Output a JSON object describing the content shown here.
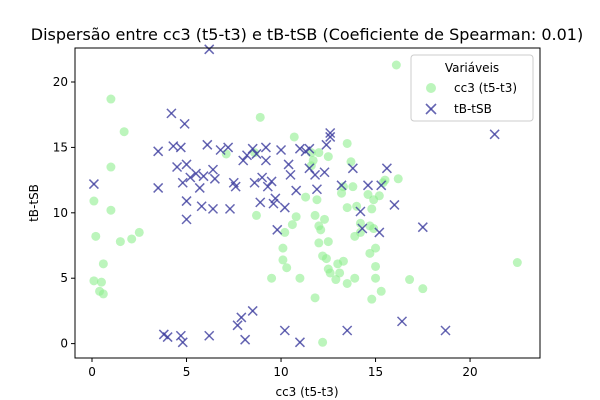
{
  "chart_data": {
    "type": "scatter",
    "title": "Dispersão entre cc3 (t5-t3) e tB-tSB (Coeficiente de Spearman: 0.01)",
    "xlabel": "cc3 (t5-t3)",
    "ylabel": "tB-tSB",
    "xlim": [
      -0.9,
      23.7
    ],
    "ylim": [
      -1.1,
      22.6
    ],
    "xticks": [
      0,
      5,
      10,
      15,
      20
    ],
    "yticks": [
      0,
      5,
      10,
      15,
      20
    ],
    "grid": false,
    "legend": {
      "title": "Variáveis",
      "placement": "top-right"
    },
    "series": [
      {
        "name": "cc3 (t5-t3)",
        "marker": "circle",
        "color": "#90EE90",
        "points": [
          [
            0.1,
            4.8
          ],
          [
            0.4,
            4.0
          ],
          [
            0.6,
            3.8
          ],
          [
            0.5,
            4.7
          ],
          [
            0.6,
            6.1
          ],
          [
            0.2,
            8.2
          ],
          [
            0.1,
            10.9
          ],
          [
            1.0,
            10.2
          ],
          [
            1.0,
            13.5
          ],
          [
            1.0,
            18.7
          ],
          [
            1.7,
            16.2
          ],
          [
            1.5,
            7.8
          ],
          [
            2.1,
            8.0
          ],
          [
            2.5,
            8.5
          ],
          [
            7.1,
            14.5
          ],
          [
            8.6,
            14.6
          ],
          [
            8.7,
            9.8
          ],
          [
            8.9,
            17.3
          ],
          [
            10.2,
            8.5
          ],
          [
            10.1,
            7.3
          ],
          [
            10.1,
            6.4
          ],
          [
            10.3,
            5.8
          ],
          [
            9.5,
            5.0
          ],
          [
            10.6,
            9.1
          ],
          [
            10.8,
            9.7
          ],
          [
            11.0,
            5.0
          ],
          [
            10.7,
            15.8
          ],
          [
            11.3,
            11.2
          ],
          [
            11.6,
            13.6
          ],
          [
            11.6,
            14.6
          ],
          [
            11.9,
            11.0
          ],
          [
            12.0,
            9.0
          ],
          [
            11.8,
            9.8
          ],
          [
            12.0,
            7.7
          ],
          [
            12.1,
            8.7
          ],
          [
            12.3,
            9.5
          ],
          [
            12.5,
            7.8
          ],
          [
            12.2,
            6.7
          ],
          [
            12.4,
            6.5
          ],
          [
            12.5,
            5.7
          ],
          [
            11.8,
            3.5
          ],
          [
            12.2,
            0.1
          ],
          [
            12.6,
            5.4
          ],
          [
            12.9,
            4.9
          ],
          [
            13.0,
            6.1
          ],
          [
            13.1,
            5.4
          ],
          [
            13.3,
            6.3
          ],
          [
            13.5,
            4.6
          ],
          [
            13.9,
            5.0
          ],
          [
            13.5,
            10.4
          ],
          [
            13.2,
            11.5
          ],
          [
            13.3,
            12.0
          ],
          [
            12.5,
            14.3
          ],
          [
            12.0,
            14.6
          ],
          [
            11.7,
            14.0
          ],
          [
            13.5,
            15.3
          ],
          [
            13.7,
            13.9
          ],
          [
            13.8,
            12.0
          ],
          [
            14.0,
            10.5
          ],
          [
            14.2,
            9.2
          ],
          [
            13.9,
            8.2
          ],
          [
            14.2,
            8.5
          ],
          [
            14.6,
            11.4
          ],
          [
            14.7,
            9.0
          ],
          [
            14.9,
            8.8
          ],
          [
            14.8,
            10.3
          ],
          [
            14.9,
            11.0
          ],
          [
            15.0,
            7.3
          ],
          [
            14.7,
            6.9
          ],
          [
            15.0,
            5.9
          ],
          [
            15.0,
            5.0
          ],
          [
            14.8,
            3.4
          ],
          [
            15.3,
            4.0
          ],
          [
            15.2,
            11.3
          ],
          [
            15.4,
            12.3
          ],
          [
            15.5,
            12.5
          ],
          [
            16.1,
            21.3
          ],
          [
            16.2,
            12.6
          ],
          [
            16.8,
            4.9
          ],
          [
            17.5,
            4.2
          ],
          [
            22.5,
            6.2
          ]
        ]
      },
      {
        "name": "tB-tSB",
        "marker": "x",
        "color": "#3F3F9F",
        "points": [
          [
            0.1,
            12.2
          ],
          [
            3.5,
            14.7
          ],
          [
            3.5,
            11.9
          ],
          [
            4.2,
            17.6
          ],
          [
            4.3,
            15.1
          ],
          [
            4.5,
            13.5
          ],
          [
            4.7,
            15.0
          ],
          [
            4.8,
            12.3
          ],
          [
            4.9,
            16.8
          ],
          [
            5.0,
            13.7
          ],
          [
            5.0,
            10.9
          ],
          [
            5.0,
            9.5
          ],
          [
            5.2,
            12.7
          ],
          [
            5.5,
            13.0
          ],
          [
            5.7,
            11.9
          ],
          [
            5.9,
            12.8
          ],
          [
            5.8,
            10.5
          ],
          [
            6.1,
            15.2
          ],
          [
            6.4,
            13.3
          ],
          [
            6.5,
            12.6
          ],
          [
            6.4,
            10.3
          ],
          [
            6.8,
            14.8
          ],
          [
            7.2,
            15.0
          ],
          [
            7.5,
            12.3
          ],
          [
            7.3,
            10.3
          ],
          [
            7.6,
            12.0
          ],
          [
            8.0,
            14.0
          ],
          [
            8.2,
            14.4
          ],
          [
            8.5,
            14.9
          ],
          [
            8.6,
            12.3
          ],
          [
            8.7,
            14.5
          ],
          [
            8.9,
            10.8
          ],
          [
            9.0,
            12.7
          ],
          [
            9.2,
            15.0
          ],
          [
            9.2,
            14.0
          ],
          [
            9.3,
            12.0
          ],
          [
            9.5,
            12.4
          ],
          [
            9.6,
            10.7
          ],
          [
            9.7,
            11.1
          ],
          [
            9.8,
            8.7
          ],
          [
            10.0,
            14.8
          ],
          [
            10.2,
            10.4
          ],
          [
            10.4,
            13.7
          ],
          [
            10.5,
            12.9
          ],
          [
            10.8,
            11.7
          ],
          [
            11.0,
            14.9
          ],
          [
            11.3,
            14.7
          ],
          [
            11.5,
            14.9
          ],
          [
            11.5,
            13.4
          ],
          [
            11.8,
            12.9
          ],
          [
            11.9,
            11.8
          ],
          [
            12.3,
            13.1
          ],
          [
            12.6,
            15.8
          ],
          [
            12.6,
            16.1
          ],
          [
            12.4,
            15.2
          ],
          [
            13.2,
            12.1
          ],
          [
            13.8,
            13.4
          ],
          [
            14.2,
            10.1
          ],
          [
            14.3,
            8.8
          ],
          [
            14.6,
            12.1
          ],
          [
            15.2,
            8.5
          ],
          [
            15.3,
            12.1
          ],
          [
            15.6,
            13.4
          ],
          [
            16.0,
            10.6
          ],
          [
            17.5,
            8.9
          ],
          [
            21.3,
            16.0
          ],
          [
            6.2,
            22.5
          ],
          [
            3.8,
            0.7
          ],
          [
            4.0,
            0.5
          ],
          [
            4.7,
            0.6
          ],
          [
            4.8,
            0.1
          ],
          [
            6.2,
            0.6
          ],
          [
            7.7,
            1.4
          ],
          [
            7.9,
            2.0
          ],
          [
            8.1,
            0.3
          ],
          [
            8.5,
            2.5
          ],
          [
            10.2,
            1.0
          ],
          [
            11.0,
            0.1
          ],
          [
            13.5,
            1.0
          ],
          [
            16.4,
            1.7
          ],
          [
            18.7,
            1.0
          ]
        ]
      }
    ]
  }
}
